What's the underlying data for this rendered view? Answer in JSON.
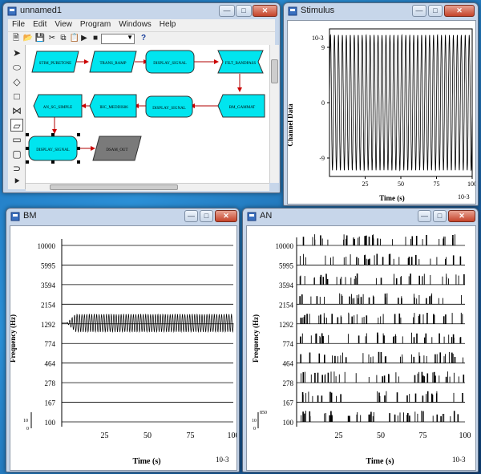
{
  "main": {
    "title": "unnamed1",
    "menu": [
      "File",
      "Edit",
      "View",
      "Program",
      "Windows",
      "Help"
    ],
    "toolbar_icons": [
      "new-file-icon",
      "open-icon",
      "save-icon",
      "cut-icon",
      "copy-icon",
      "paste-icon",
      "run-icon",
      "stop-icon",
      "help-icon"
    ],
    "blocks": [
      {
        "id": "stim",
        "label": "STIM_PURETONE",
        "shape": "parallelogram",
        "color": "#00e5ef"
      },
      {
        "id": "trans",
        "label": "TRANS_RAMP",
        "shape": "parallelogram",
        "color": "#00e5ef"
      },
      {
        "id": "disp1",
        "label": "DISPLAY_SIGNAL",
        "shape": "rounded",
        "color": "#00e5ef"
      },
      {
        "id": "filt",
        "label": "FILT_BANDPASS",
        "shape": "bowtie",
        "color": "#00e5ef"
      },
      {
        "id": "bm",
        "label": "BM_GAMMAT",
        "shape": "pentagon",
        "color": "#00e5ef"
      },
      {
        "id": "disp2",
        "label": "DISPLAY_SIGNAL",
        "shape": "rounded",
        "color": "#00e5ef"
      },
      {
        "id": "ihc",
        "label": "IHC_MEDDIS86",
        "shape": "pentagon",
        "color": "#00e5ef"
      },
      {
        "id": "an",
        "label": "AN_SG_SIMPLE",
        "shape": "pentagon",
        "color": "#00e5ef"
      },
      {
        "id": "disp3",
        "label": "DISPLAY_SIGNAL",
        "shape": "rounded",
        "color": "#00e5ef"
      },
      {
        "id": "dsam",
        "label": "DSAM_OUT",
        "shape": "parallelogram",
        "color": "#7a7a7a"
      }
    ]
  },
  "stimulus": {
    "title": "Stimulus",
    "chart_data": {
      "type": "line",
      "ylabel": "Channel Data",
      "xlabel": "Time (s)",
      "x_multiplier": "10-3",
      "y_multiplier": "10-3",
      "xticks": [
        "25",
        "50",
        "75",
        "100"
      ],
      "yticks": [
        "9",
        "0",
        "-9"
      ],
      "xlim": [
        0,
        100
      ],
      "ylim": [
        -12,
        12
      ],
      "waveform": "sinusoid",
      "amplitude": 11,
      "cycles_shown": 36
    }
  },
  "bm_win": {
    "title": "BM",
    "chart_data": {
      "type": "line",
      "ylabel": "Frequency (Hz)",
      "xlabel": "Time (s)",
      "x_multiplier": "10-3",
      "channels": [
        "10000",
        "5995",
        "3594",
        "2154",
        "1292",
        "774",
        "464",
        "278",
        "167",
        "100"
      ],
      "xticks": [
        "25",
        "50",
        "75",
        "100"
      ],
      "xlim": [
        0,
        100
      ],
      "active_channel": "1292",
      "scale_bar": {
        "top": "10",
        "bottom": "0"
      }
    }
  },
  "an_win": {
    "title": "AN",
    "chart_data": {
      "type": "scatter",
      "ylabel": "Frequency (Hz)",
      "xlabel": "Time (s)",
      "x_multiplier": "10-3",
      "channels": [
        "10000",
        "5995",
        "3594",
        "2154",
        "1292",
        "774",
        "464",
        "278",
        "167",
        "100"
      ],
      "xticks": [
        "25",
        "50",
        "75",
        "100"
      ],
      "xlim": [
        0,
        100
      ],
      "scale_bar": {
        "top": "10",
        "mid": "850",
        "bottom": "0"
      }
    }
  }
}
